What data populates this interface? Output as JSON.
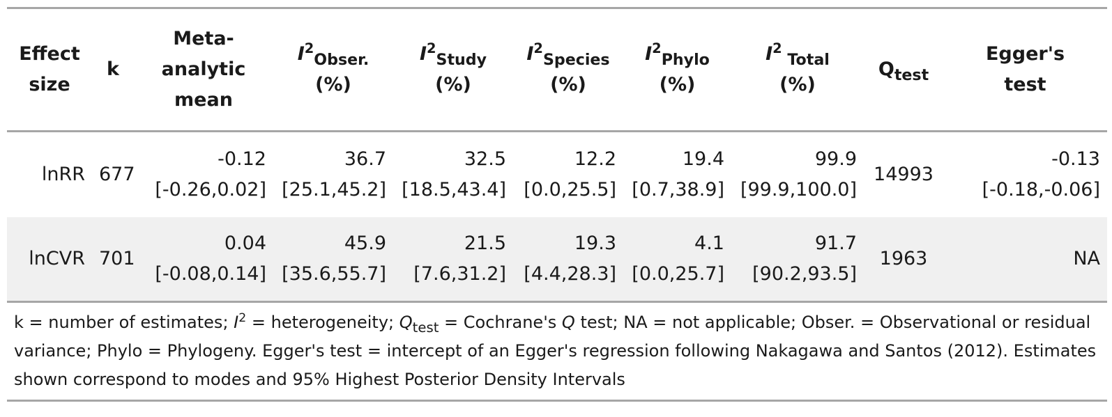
{
  "headers": {
    "effect_size": [
      "Effect",
      "size"
    ],
    "k": "k",
    "meta_mean": [
      "Meta-",
      "analytic",
      "mean"
    ],
    "i2_obser": {
      "sym": "I",
      "sup": "2",
      "sub": "Obser.",
      "unit": "(%)"
    },
    "i2_study": {
      "sym": "I",
      "sup": "2",
      "sub": "Study",
      "unit": "(%)"
    },
    "i2_species": {
      "sym": "I",
      "sup": "2",
      "sub": "Species",
      "unit": "(%)"
    },
    "i2_phylo": {
      "sym": "I",
      "sup": "2",
      "sub": "Phylo",
      "unit": "(%)"
    },
    "i2_total": {
      "sym": "I",
      "sup": "2",
      "sub": " Total",
      "unit": "(%)"
    },
    "q_test": {
      "sym": "Q",
      "sub": "test"
    },
    "egger": [
      "Egger's",
      "test"
    ]
  },
  "rows": [
    {
      "effect": "lnRR",
      "k": "677",
      "mean": [
        "-0.12",
        "[-0.26,0.02]"
      ],
      "obser": [
        "36.7",
        "[25.1,45.2]"
      ],
      "study": [
        "32.5",
        "[18.5,43.4]"
      ],
      "species": [
        "12.2",
        "[0.0,25.5]"
      ],
      "phylo": [
        "19.4",
        "[0.7,38.9]"
      ],
      "total": [
        "99.9",
        "[99.9,100.0]"
      ],
      "q": "14993",
      "egger": [
        "-0.13",
        "[-0.18,-0.06]"
      ]
    },
    {
      "effect": "lnCVR",
      "k": "701",
      "mean": [
        "0.04",
        "[-0.08,0.14]"
      ],
      "obser": [
        "45.9",
        "[35.6,55.7]"
      ],
      "study": [
        "21.5",
        "[7.6,31.2]"
      ],
      "species": [
        "19.3",
        "[4.4,28.3]"
      ],
      "phylo": [
        "4.1",
        "[0.0,25.7]"
      ],
      "total": [
        "91.7",
        "[90.2,93.5]"
      ],
      "q": "1963",
      "egger": [
        "NA"
      ]
    }
  ],
  "footnote": {
    "p1": "k = number of estimates; ",
    "i_sym": "I",
    "i_sup": "2",
    "p2": " = heterogeneity; ",
    "q_sym": "Q",
    "q_sub": "test",
    "p3": " = Cochrane's ",
    "q_ital": "Q",
    "p4": " test; NA = not applicable; Obser. = Observational or residual variance; Phylo = Phylogeny. Egger's test = intercept of an Egger's regression following Nakagawa and Santos (2012). Estimates shown correspond to modes and 95% Highest Posterior Density Intervals"
  }
}
